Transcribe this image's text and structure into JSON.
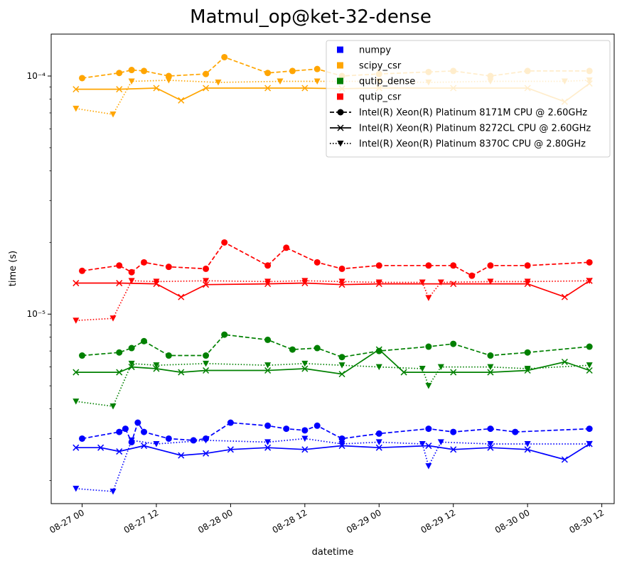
{
  "chart_data": {
    "type": "line",
    "title": "Matmul_op@ket-32-dense",
    "xlabel": "datetime",
    "ylabel": "time (s)",
    "y_scale": "log",
    "xlim": [
      "2023-08-26T19:00",
      "2023-08-30T14:00"
    ],
    "ylim": [
      1.6e-06,
      0.00015
    ],
    "x_ticks": [
      {
        "t": "2023-08-27T00:00",
        "label": "08-27 00"
      },
      {
        "t": "2023-08-27T12:00",
        "label": "08-27 12"
      },
      {
        "t": "2023-08-28T00:00",
        "label": "08-28 00"
      },
      {
        "t": "2023-08-28T12:00",
        "label": "08-28 12"
      },
      {
        "t": "2023-08-29T00:00",
        "label": "08-29 00"
      },
      {
        "t": "2023-08-29T12:00",
        "label": "08-29 12"
      },
      {
        "t": "2023-08-30T00:00",
        "label": "08-30 00"
      },
      {
        "t": "2023-08-30T12:00",
        "label": "08-30 12"
      }
    ],
    "y_ticks": [
      {
        "v": 1e-05,
        "label": "10⁻⁵"
      },
      {
        "v": 0.0001,
        "label": "10⁻⁴"
      }
    ],
    "legend_placement": "top-right",
    "legend": {
      "libraries": [
        {
          "name": "numpy",
          "color": "#0000ff"
        },
        {
          "name": "scipy_csr",
          "color": "#ffa500"
        },
        {
          "name": "qutip_dense",
          "color": "#008000"
        },
        {
          "name": "qutip_csr",
          "color": "#ff0000"
        }
      ],
      "cpus": [
        {
          "name": "Intel(R) Xeon(R) Platinum 8171M CPU @ 2.60GHz",
          "linestyle": "dashed",
          "marker": "circle"
        },
        {
          "name": "Intel(R) Xeon(R) Platinum 8272CL CPU @ 2.60GHz",
          "linestyle": "solid",
          "marker": "x"
        },
        {
          "name": "Intel(R) Xeon(R) Platinum 8370C CPU @ 2.80GHz",
          "linestyle": "dotted",
          "marker": "triangle-down"
        }
      ]
    },
    "series": [
      {
        "library": "numpy",
        "cpu": "Intel(R) Xeon(R) Platinum 8171M CPU @ 2.60GHz",
        "color": "#0000ff",
        "x": [
          "2023-08-27T00:00",
          "2023-08-27T06:00",
          "2023-08-27T07:00",
          "2023-08-27T08:00",
          "2023-08-27T09:00",
          "2023-08-27T10:00",
          "2023-08-27T14:00",
          "2023-08-27T18:00",
          "2023-08-27T20:00",
          "2023-08-28T00:00",
          "2023-08-28T06:00",
          "2023-08-28T09:00",
          "2023-08-28T12:00",
          "2023-08-28T14:00",
          "2023-08-28T18:00",
          "2023-08-29T00:00",
          "2023-08-29T08:00",
          "2023-08-29T12:00",
          "2023-08-29T18:00",
          "2023-08-29T22:00",
          "2023-08-30T10:00"
        ],
        "y": [
          3e-06,
          3.2e-06,
          3.3e-06,
          2.9e-06,
          3.5e-06,
          3.2e-06,
          3e-06,
          2.95e-06,
          3e-06,
          3.5e-06,
          3.4e-06,
          3.3e-06,
          3.25e-06,
          3.4e-06,
          3e-06,
          3.15e-06,
          3.3e-06,
          3.2e-06,
          3.3e-06,
          3.2e-06,
          3.3e-06
        ]
      },
      {
        "library": "numpy",
        "cpu": "Intel(R) Xeon(R) Platinum 8272CL CPU @ 2.60GHz",
        "color": "#0000ff",
        "x": [
          "2023-08-26T23:00",
          "2023-08-27T03:00",
          "2023-08-27T06:00",
          "2023-08-27T10:00",
          "2023-08-27T16:00",
          "2023-08-27T20:00",
          "2023-08-28T00:00",
          "2023-08-28T06:00",
          "2023-08-28T12:00",
          "2023-08-28T18:00",
          "2023-08-29T00:00",
          "2023-08-29T08:00",
          "2023-08-29T12:00",
          "2023-08-29T18:00",
          "2023-08-30T00:00",
          "2023-08-30T06:00",
          "2023-08-30T10:00"
        ],
        "y": [
          2.75e-06,
          2.75e-06,
          2.65e-06,
          2.8e-06,
          2.55e-06,
          2.6e-06,
          2.7e-06,
          2.75e-06,
          2.7e-06,
          2.8e-06,
          2.75e-06,
          2.8e-06,
          2.7e-06,
          2.75e-06,
          2.7e-06,
          2.45e-06,
          2.85e-06
        ]
      },
      {
        "library": "numpy",
        "cpu": "Intel(R) Xeon(R) Platinum 8370C CPU @ 2.80GHz",
        "color": "#0000ff",
        "x": [
          "2023-08-26T23:00",
          "2023-08-27T05:00",
          "2023-08-27T08:00",
          "2023-08-27T12:00",
          "2023-08-27T20:00",
          "2023-08-28T06:00",
          "2023-08-28T12:00",
          "2023-08-28T18:00",
          "2023-08-29T00:00",
          "2023-08-29T07:00",
          "2023-08-29T08:00",
          "2023-08-29T10:00",
          "2023-08-29T18:00",
          "2023-08-30T00:00",
          "2023-08-30T10:00"
        ],
        "y": [
          1.85e-06,
          1.8e-06,
          2.95e-06,
          2.85e-06,
          2.95e-06,
          2.9e-06,
          3e-06,
          2.85e-06,
          2.9e-06,
          2.85e-06,
          2.3e-06,
          2.9e-06,
          2.85e-06,
          2.85e-06,
          2.85e-06
        ]
      },
      {
        "library": "scipy_csr",
        "cpu": "Intel(R) Xeon(R) Platinum 8171M CPU @ 2.60GHz",
        "color": "#ffa500",
        "x": [
          "2023-08-27T00:00",
          "2023-08-27T06:00",
          "2023-08-27T08:00",
          "2023-08-27T10:00",
          "2023-08-27T14:00",
          "2023-08-27T20:00",
          "2023-08-27T23:00",
          "2023-08-28T06:00",
          "2023-08-28T10:00",
          "2023-08-28T14:00",
          "2023-08-28T18:00",
          "2023-08-29T00:00",
          "2023-08-29T08:00",
          "2023-08-29T12:00",
          "2023-08-29T18:00",
          "2023-08-30T00:00",
          "2023-08-30T10:00"
        ],
        "y": [
          9.8e-05,
          0.000103,
          0.000106,
          0.000105,
          0.0001,
          0.000102,
          0.00012,
          0.000103,
          0.000105,
          0.000107,
          0.0001,
          0.000102,
          0.000104,
          0.000105,
          0.0001,
          0.000105,
          0.000105
        ]
      },
      {
        "library": "scipy_csr",
        "cpu": "Intel(R) Xeon(R) Platinum 8272CL CPU @ 2.60GHz",
        "color": "#ffa500",
        "x": [
          "2023-08-26T23:00",
          "2023-08-27T06:00",
          "2023-08-27T12:00",
          "2023-08-27T16:00",
          "2023-08-27T20:00",
          "2023-08-28T06:00",
          "2023-08-28T12:00",
          "2023-08-28T18:00",
          "2023-08-29T00:00",
          "2023-08-29T12:00",
          "2023-08-30T00:00",
          "2023-08-30T06:00",
          "2023-08-30T10:00"
        ],
        "y": [
          8.8e-05,
          8.8e-05,
          8.9e-05,
          7.9e-05,
          8.9e-05,
          8.9e-05,
          8.9e-05,
          8.85e-05,
          8.9e-05,
          8.9e-05,
          8.9e-05,
          7.8e-05,
          9.3e-05
        ]
      },
      {
        "library": "scipy_csr",
        "cpu": "Intel(R) Xeon(R) Platinum 8370C CPU @ 2.80GHz",
        "color": "#ffa500",
        "x": [
          "2023-08-26T23:00",
          "2023-08-27T05:00",
          "2023-08-27T08:00",
          "2023-08-27T14:00",
          "2023-08-27T22:00",
          "2023-08-28T08:00",
          "2023-08-28T14:00",
          "2023-08-29T00:00",
          "2023-08-29T08:00",
          "2023-08-29T18:00",
          "2023-08-30T06:00",
          "2023-08-30T10:00"
        ],
        "y": [
          7.3e-05,
          6.9e-05,
          9.5e-05,
          9.6e-05,
          9.4e-05,
          9.5e-05,
          9.5e-05,
          9.5e-05,
          9.4e-05,
          9.5e-05,
          9.5e-05,
          9.6e-05
        ]
      },
      {
        "library": "qutip_dense",
        "cpu": "Intel(R) Xeon(R) Platinum 8171M CPU @ 2.60GHz",
        "color": "#008000",
        "x": [
          "2023-08-27T00:00",
          "2023-08-27T06:00",
          "2023-08-27T08:00",
          "2023-08-27T10:00",
          "2023-08-27T14:00",
          "2023-08-27T20:00",
          "2023-08-27T23:00",
          "2023-08-28T06:00",
          "2023-08-28T10:00",
          "2023-08-28T14:00",
          "2023-08-28T18:00",
          "2023-08-29T00:00",
          "2023-08-29T08:00",
          "2023-08-29T12:00",
          "2023-08-29T18:00",
          "2023-08-30T00:00",
          "2023-08-30T10:00"
        ],
        "y": [
          6.7e-06,
          6.9e-06,
          7.2e-06,
          7.7e-06,
          6.7e-06,
          6.7e-06,
          8.2e-06,
          7.8e-06,
          7.1e-06,
          7.2e-06,
          6.6e-06,
          7e-06,
          7.3e-06,
          7.5e-06,
          6.7e-06,
          6.9e-06,
          7.3e-06
        ]
      },
      {
        "library": "qutip_dense",
        "cpu": "Intel(R) Xeon(R) Platinum 8272CL CPU @ 2.60GHz",
        "color": "#008000",
        "x": [
          "2023-08-26T23:00",
          "2023-08-27T06:00",
          "2023-08-27T08:00",
          "2023-08-27T12:00",
          "2023-08-27T16:00",
          "2023-08-27T20:00",
          "2023-08-28T06:00",
          "2023-08-28T12:00",
          "2023-08-28T18:00",
          "2023-08-29T00:00",
          "2023-08-29T04:00",
          "2023-08-29T12:00",
          "2023-08-29T18:00",
          "2023-08-30T00:00",
          "2023-08-30T06:00",
          "2023-08-30T10:00"
        ],
        "y": [
          5.7e-06,
          5.7e-06,
          6e-06,
          5.9e-06,
          5.7e-06,
          5.8e-06,
          5.8e-06,
          5.9e-06,
          5.6e-06,
          7.1e-06,
          5.7e-06,
          5.7e-06,
          5.7e-06,
          5.8e-06,
          6.3e-06,
          5.8e-06
        ]
      },
      {
        "library": "qutip_dense",
        "cpu": "Intel(R) Xeon(R) Platinum 8370C CPU @ 2.80GHz",
        "color": "#008000",
        "x": [
          "2023-08-26T23:00",
          "2023-08-27T05:00",
          "2023-08-27T08:00",
          "2023-08-27T12:00",
          "2023-08-27T20:00",
          "2023-08-28T06:00",
          "2023-08-28T12:00",
          "2023-08-28T18:00",
          "2023-08-29T00:00",
          "2023-08-29T07:00",
          "2023-08-29T08:00",
          "2023-08-29T10:00",
          "2023-08-29T18:00",
          "2023-08-30T00:00",
          "2023-08-30T10:00"
        ],
        "y": [
          4.3e-06,
          4.1e-06,
          6.2e-06,
          6.1e-06,
          6.2e-06,
          6.1e-06,
          6.2e-06,
          6.1e-06,
          6e-06,
          5.9e-06,
          5e-06,
          6e-06,
          6e-06,
          5.9e-06,
          6.1e-06
        ]
      },
      {
        "library": "qutip_csr",
        "cpu": "Intel(R) Xeon(R) Platinum 8171M CPU @ 2.60GHz",
        "color": "#ff0000",
        "x": [
          "2023-08-27T00:00",
          "2023-08-27T06:00",
          "2023-08-27T08:00",
          "2023-08-27T10:00",
          "2023-08-27T14:00",
          "2023-08-27T20:00",
          "2023-08-27T23:00",
          "2023-08-28T06:00",
          "2023-08-28T09:00",
          "2023-08-28T14:00",
          "2023-08-28T18:00",
          "2023-08-29T00:00",
          "2023-08-29T08:00",
          "2023-08-29T12:00",
          "2023-08-29T15:00",
          "2023-08-29T18:00",
          "2023-08-30T00:00",
          "2023-08-30T10:00"
        ],
        "y": [
          1.52e-05,
          1.6e-05,
          1.5e-05,
          1.65e-05,
          1.58e-05,
          1.55e-05,
          2e-05,
          1.6e-05,
          1.9e-05,
          1.65e-05,
          1.55e-05,
          1.6e-05,
          1.6e-05,
          1.6e-05,
          1.45e-05,
          1.6e-05,
          1.6e-05,
          1.65e-05
        ]
      },
      {
        "library": "qutip_csr",
        "cpu": "Intel(R) Xeon(R) Platinum 8272CL CPU @ 2.60GHz",
        "color": "#ff0000",
        "x": [
          "2023-08-26T23:00",
          "2023-08-27T06:00",
          "2023-08-27T12:00",
          "2023-08-27T16:00",
          "2023-08-27T20:00",
          "2023-08-28T06:00",
          "2023-08-28T12:00",
          "2023-08-28T18:00",
          "2023-08-29T00:00",
          "2023-08-29T12:00",
          "2023-08-30T00:00",
          "2023-08-30T06:00",
          "2023-08-30T10:00"
        ],
        "y": [
          1.35e-05,
          1.35e-05,
          1.34e-05,
          1.18e-05,
          1.33e-05,
          1.34e-05,
          1.35e-05,
          1.33e-05,
          1.34e-05,
          1.34e-05,
          1.34e-05,
          1.18e-05,
          1.38e-05
        ]
      },
      {
        "library": "qutip_csr",
        "cpu": "Intel(R) Xeon(R) Platinum 8370C CPU @ 2.80GHz",
        "color": "#ff0000",
        "x": [
          "2023-08-26T23:00",
          "2023-08-27T05:00",
          "2023-08-27T08:00",
          "2023-08-27T12:00",
          "2023-08-27T20:00",
          "2023-08-28T06:00",
          "2023-08-28T12:00",
          "2023-08-28T18:00",
          "2023-08-29T00:00",
          "2023-08-29T07:00",
          "2023-08-29T08:00",
          "2023-08-29T10:00",
          "2023-08-29T18:00",
          "2023-08-30T00:00",
          "2023-08-30T10:00"
        ],
        "y": [
          9.4e-06,
          9.6e-06,
          1.38e-05,
          1.37e-05,
          1.38e-05,
          1.37e-05,
          1.38e-05,
          1.37e-05,
          1.36e-05,
          1.36e-05,
          1.17e-05,
          1.36e-05,
          1.37e-05,
          1.37e-05,
          1.38e-05
        ]
      }
    ]
  }
}
